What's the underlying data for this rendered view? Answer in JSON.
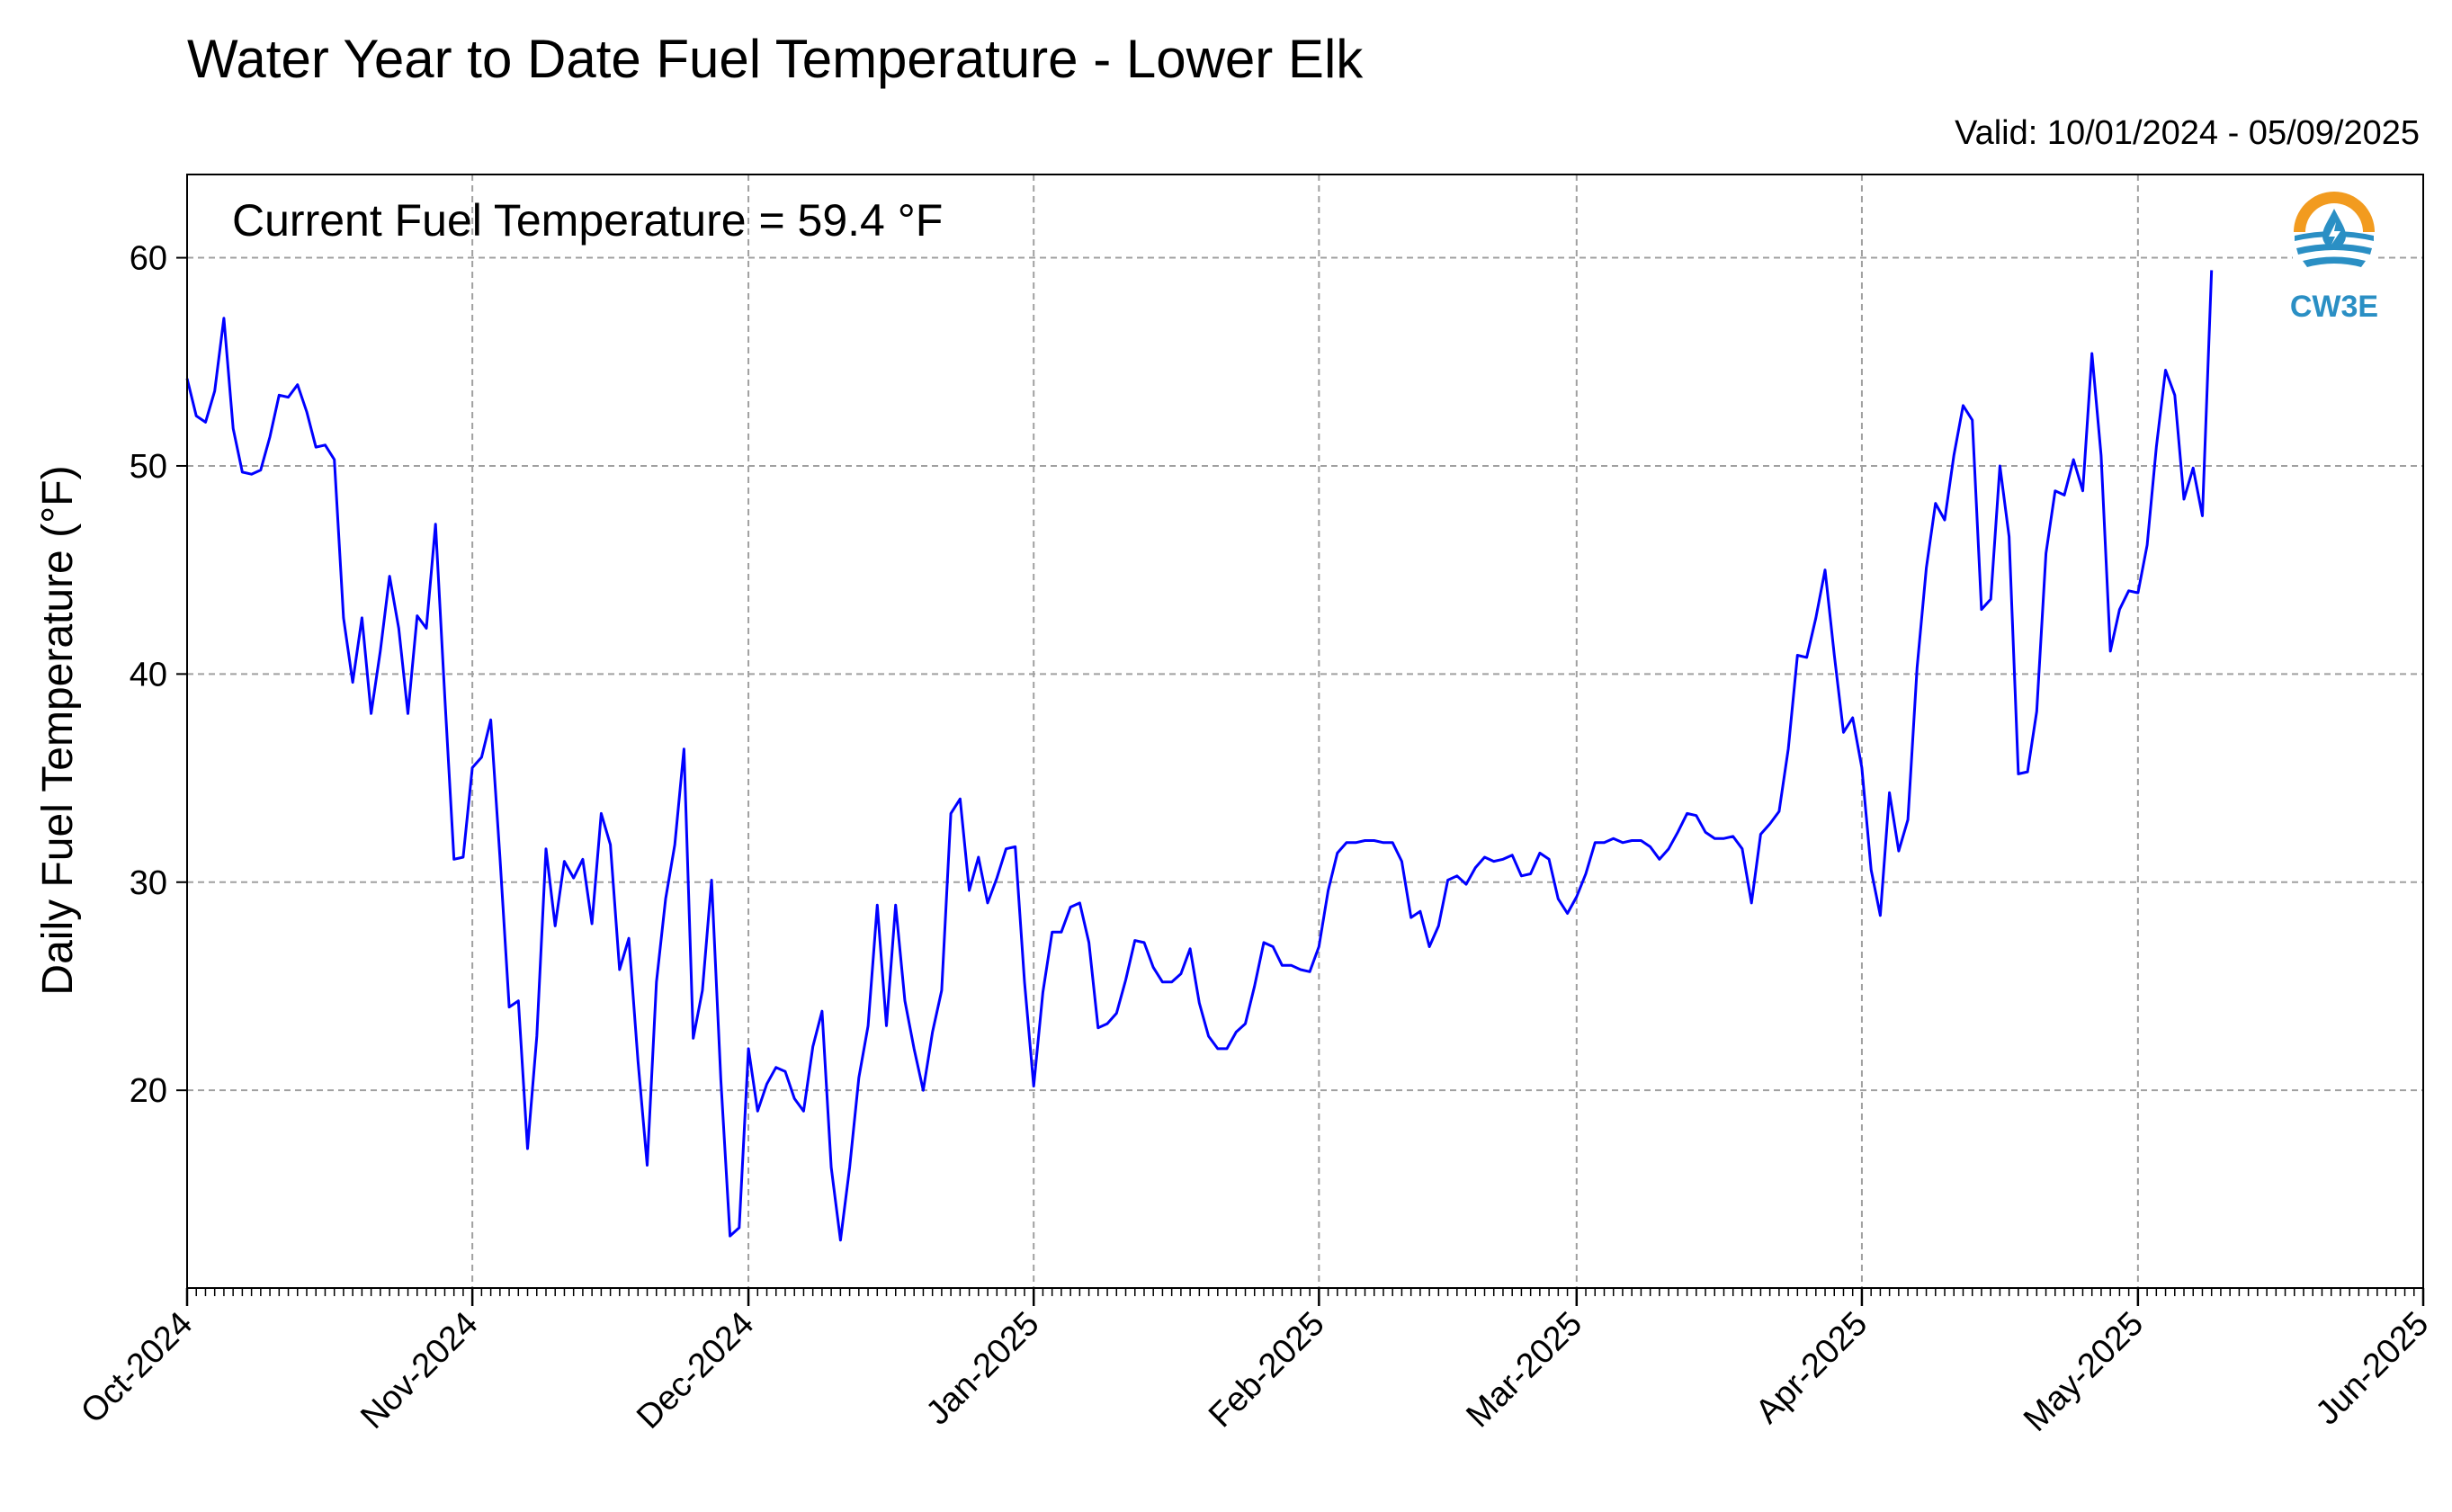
{
  "chart_data": {
    "type": "line",
    "title": "Water Year to Date Fuel Temperature - Lower Elk",
    "subtitle": "Valid: 10/01/2024 - 05/09/2025",
    "annotation": "Current Fuel Temperature = 59.4 °F",
    "xlabel": "",
    "ylabel": "Daily Fuel Temperature (°F)",
    "xlim": [
      "2024-10-01",
      "2025-06-01"
    ],
    "ylim": [
      10.5,
      64
    ],
    "grid": true,
    "x_ticks": [
      {
        "date": "2024-10-01",
        "label": "Oct-2024"
      },
      {
        "date": "2024-11-01",
        "label": "Nov-2024"
      },
      {
        "date": "2024-12-01",
        "label": "Dec-2024"
      },
      {
        "date": "2025-01-01",
        "label": "Jan-2025"
      },
      {
        "date": "2025-02-01",
        "label": "Feb-2025"
      },
      {
        "date": "2025-03-01",
        "label": "Mar-2025"
      },
      {
        "date": "2025-04-01",
        "label": "Apr-2025"
      },
      {
        "date": "2025-05-01",
        "label": "May-2025"
      },
      {
        "date": "2025-06-01",
        "label": "Jun-2025"
      }
    ],
    "y_ticks": [
      20,
      30,
      40,
      50,
      60
    ],
    "series": [
      {
        "color": "#0000ff",
        "start_date": "2024-10-01",
        "values": [
          54.2,
          52.4,
          52.1,
          53.6,
          57.1,
          51.8,
          49.7,
          49.6,
          49.8,
          51.4,
          53.4,
          53.3,
          53.9,
          52.6,
          50.9,
          51.0,
          50.3,
          42.7,
          39.6,
          42.7,
          38.1,
          41.1,
          44.7,
          42.2,
          38.1,
          42.8,
          42.2,
          47.2,
          38.9,
          31.1,
          31.2,
          35.5,
          36.0,
          37.8,
          31.2,
          24.0,
          24.3,
          17.2,
          22.6,
          31.6,
          27.9,
          31.0,
          30.2,
          31.1,
          28.0,
          33.3,
          31.8,
          25.8,
          27.3,
          21.4,
          16.4,
          25.2,
          29.2,
          31.8,
          36.4,
          22.5,
          24.8,
          30.1,
          20.5,
          13.0,
          13.4,
          22.0,
          19.0,
          20.3,
          21.1,
          20.9,
          19.6,
          19.0,
          22.1,
          23.8,
          16.3,
          12.8,
          16.3,
          20.6,
          23.1,
          28.9,
          23.1,
          28.9,
          24.3,
          22.0,
          20.0,
          22.8,
          24.8,
          33.3,
          34.0,
          29.6,
          31.2,
          29.0,
          30.2,
          31.6,
          31.7,
          25.2,
          20.2,
          24.7,
          27.6,
          27.6,
          28.8,
          29.0,
          27.1,
          23.0,
          23.2,
          23.7,
          25.3,
          27.2,
          27.1,
          25.9,
          25.2,
          25.2,
          25.6,
          26.8,
          24.2,
          22.6,
          22.0,
          22.0,
          22.8,
          23.2,
          25.0,
          27.1,
          26.9,
          26.0,
          26.0,
          25.8,
          25.7,
          26.9,
          29.6,
          31.4,
          31.9,
          31.9,
          32.0,
          32.0,
          31.9,
          31.9,
          31.0,
          28.3,
          28.6,
          26.9,
          27.9,
          30.1,
          30.3,
          29.9,
          30.7,
          31.2,
          31.0,
          31.1,
          31.3,
          30.3,
          30.4,
          31.4,
          31.1,
          29.2,
          28.5,
          29.3,
          30.4,
          31.9,
          31.9,
          32.1,
          31.9,
          32.0,
          32.0,
          31.7,
          31.1,
          31.6,
          32.4,
          33.3,
          33.2,
          32.4,
          32.1,
          32.1,
          32.2,
          31.6,
          29.0,
          32.3,
          32.8,
          33.4,
          36.4,
          40.9,
          40.8,
          42.7,
          45.0,
          40.9,
          37.2,
          37.9,
          35.5,
          30.6,
          28.4,
          34.3,
          31.5,
          33.0,
          40.3,
          45.1,
          48.2,
          47.4,
          50.5,
          52.9,
          52.2,
          43.1,
          43.6,
          50.0,
          46.6,
          35.2,
          35.3,
          38.2,
          45.8,
          48.8,
          48.6,
          50.3,
          48.8,
          55.4,
          50.5,
          41.1,
          43.1,
          44.0,
          43.9,
          46.2,
          50.9,
          54.6,
          53.4,
          48.4,
          49.9,
          47.6,
          59.4
        ]
      }
    ]
  },
  "logo": {
    "text": "CW3E",
    "icon": "water-drop-icon",
    "colors": {
      "ring": "#f29b1f",
      "water": "#2a8fc4"
    }
  },
  "colors": {
    "line": "#0000ff",
    "grid": "#a0a0a0",
    "axis": "#000000"
  }
}
